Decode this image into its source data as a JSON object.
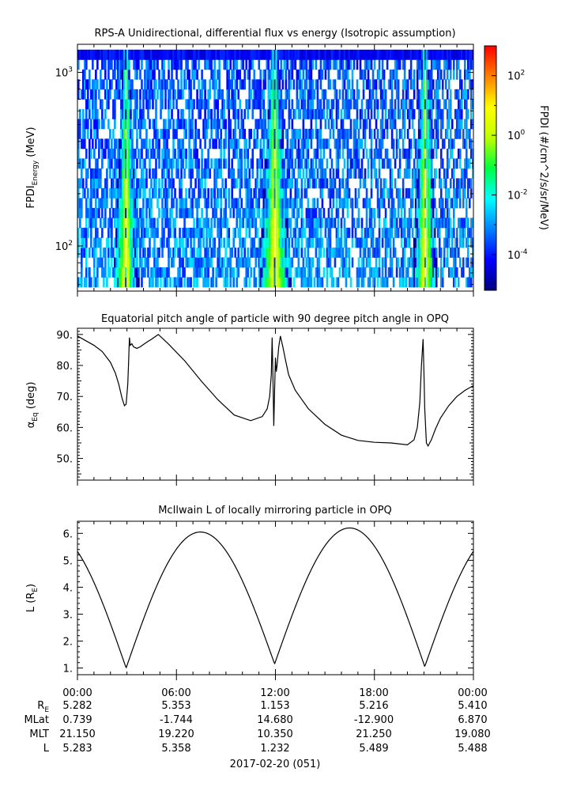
{
  "chart_data": [
    {
      "type": "heatmap",
      "title": "RPS-A Unidirectional, differential flux vs energy (Isotropic assumption)",
      "ylabel_main": "FPDI",
      "ylabel_sub": "Energy",
      "ylabel_unit": " (MeV)",
      "yscale": "log",
      "ylim": [
        55,
        1450
      ],
      "xlim_hours": [
        0,
        24
      ],
      "ytick_base": "10",
      "yticks": [
        {
          "value": 100,
          "exp": "2"
        },
        {
          "value": 1000,
          "exp": "3"
        }
      ],
      "colorbar": {
        "label": "FPDI (#/cm^2/s/sr/MeV)",
        "scale": "log",
        "range": [
          -5.2,
          3
        ],
        "colors": [
          "#00007f",
          "#0000ff",
          "#0080ff",
          "#00ffff",
          "#00ff40",
          "#c0ff00",
          "#ffff00",
          "#ff8000",
          "#ff0000"
        ],
        "ticks": [
          {
            "value": -4,
            "exp": "-4"
          },
          {
            "value": -2,
            "exp": "-2"
          },
          {
            "value": 0,
            "exp": "0"
          },
          {
            "value": 2,
            "exp": "2"
          }
        ]
      },
      "perigee_hours": [
        2.95,
        11.95,
        21.05
      ],
      "belt_widths_hours": [
        0.4,
        0.55,
        0.4
      ]
    },
    {
      "type": "line",
      "title": "Equatorial pitch angle of particle with 90 degree pitch angle in OPQ",
      "ylabel_main": "α",
      "ylabel_sub": "Eq",
      "ylabel_unit": " (deg)",
      "ylim": [
        43,
        92
      ],
      "yticks": [
        "50.",
        "60.",
        "70.",
        "80.",
        "90."
      ],
      "ytick_values": [
        50,
        60,
        70,
        80,
        90
      ],
      "x_hours": [
        0,
        0.5,
        1,
        1.5,
        2,
        2.3,
        2.5,
        2.7,
        2.85,
        2.95,
        3.05,
        3.1,
        3.15,
        3.2,
        3.3,
        3.4,
        3.6,
        3.8,
        4.2,
        4.5,
        4.9,
        5.5,
        6.5,
        7.5,
        8.5,
        9.5,
        10.5,
        11.2,
        11.5,
        11.65,
        11.75,
        11.8,
        11.85,
        11.9,
        11.95,
        12.0,
        12.05,
        12.1,
        12.2,
        12.3,
        12.45,
        12.6,
        12.8,
        13.2,
        14,
        15,
        16,
        17,
        18,
        19,
        20,
        20.4,
        20.6,
        20.75,
        20.85,
        20.95,
        21.0,
        21.05,
        21.15,
        21.25,
        21.45,
        21.7,
        22,
        22.5,
        23,
        23.5,
        24
      ],
      "y_deg": [
        89.5,
        88,
        86.5,
        84.5,
        81,
        77.5,
        74,
        69.5,
        67,
        67.5,
        74,
        81,
        89,
        86.5,
        87,
        86,
        85.5,
        86,
        87.5,
        88.5,
        90,
        87,
        81.5,
        75,
        69,
        64,
        62.2,
        63.5,
        66,
        70,
        77,
        89,
        76,
        60.5,
        72,
        82.5,
        78,
        80,
        86,
        89.5,
        86,
        82,
        77,
        72,
        66,
        61,
        57.5,
        55.8,
        55.2,
        55,
        54.4,
        56,
        60,
        68,
        80,
        88.5,
        78,
        66,
        55,
        54,
        56,
        59.5,
        63,
        67,
        70,
        72,
        73.5
      ]
    },
    {
      "type": "line",
      "title": "McIlwain L of locally mirroring particle in OPQ",
      "ylabel_main": "L (R",
      "ylabel_sub": "E",
      "ylabel_unit": ")",
      "ylim": [
        0.75,
        6.45
      ],
      "yticks": [
        "1.",
        "2.",
        "3.",
        "4.",
        "5.",
        "6."
      ],
      "ytick_values": [
        1,
        2,
        3,
        4,
        5,
        6
      ],
      "perigee_hours": [
        2.95,
        11.95,
        21.05
      ],
      "apogee_hours": [
        7.45,
        16.5
      ],
      "apogee_values": [
        6.05,
        6.2
      ],
      "perigee_values": [
        1.0,
        1.15,
        1.05
      ],
      "start_value": 5.7,
      "end_value": 5.72
    }
  ],
  "x_axis": {
    "tick_labels": [
      "00:00",
      "06:00",
      "12:00",
      "18:00",
      "00:00"
    ],
    "date_label": "2017-02-20 (051)"
  },
  "ephemeris": {
    "row_labels": [
      {
        "main": "R",
        "sub": "E"
      },
      {
        "main": "MLat",
        "sub": ""
      },
      {
        "main": "MLT",
        "sub": ""
      },
      {
        "main": "L",
        "sub": ""
      }
    ],
    "values": [
      [
        "5.282",
        "5.353",
        "1.153",
        "5.216",
        "5.410"
      ],
      [
        "0.739",
        "-1.744",
        "14.680",
        "-12.900",
        "6.870"
      ],
      [
        "21.150",
        "19.220",
        "10.350",
        "21.250",
        "19.080"
      ],
      [
        "5.283",
        "5.358",
        "1.232",
        "5.489",
        "5.488"
      ]
    ]
  }
}
